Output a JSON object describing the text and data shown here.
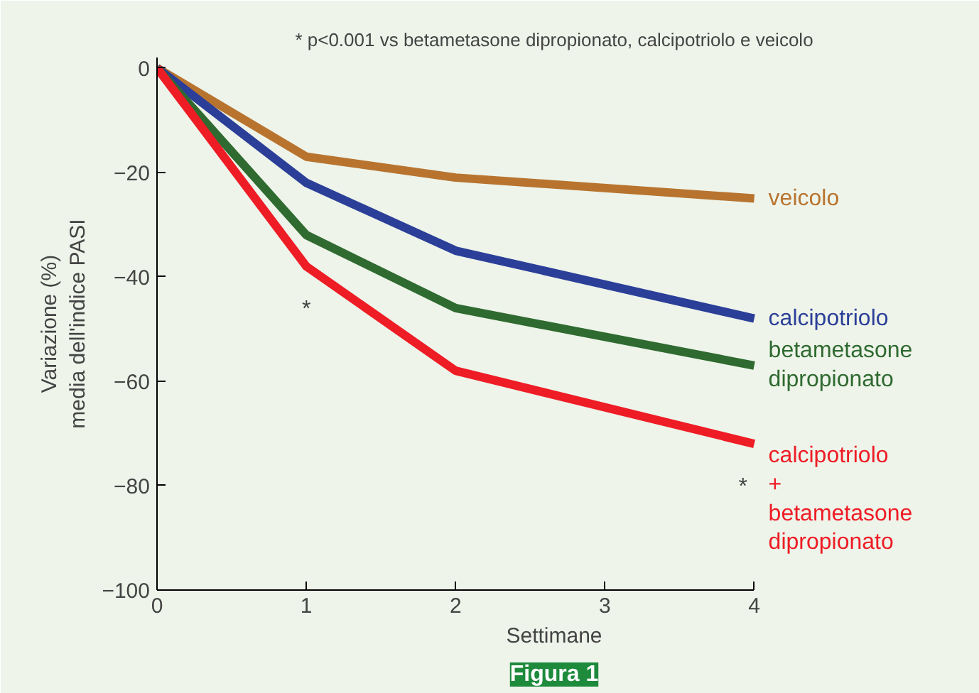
{
  "chart_data": {
    "type": "line",
    "title": "* p<0.001 vs betametasone dipropionato, calcipotriolo e veicolo",
    "xlabel": "Settimane",
    "ylabel": "Variazione (%)\nmedia dell'indice PASI",
    "x": [
      0,
      1,
      2,
      4
    ],
    "xlim": [
      0,
      4
    ],
    "xticks": [
      0,
      1,
      2,
      3,
      4
    ],
    "ylim": [
      -100,
      2
    ],
    "yticks": [
      0,
      -20,
      -40,
      -60,
      -80,
      -100
    ],
    "grid": false,
    "marker": "none",
    "line_style": "solid",
    "series": [
      {
        "name": "veicolo",
        "color": "#b8742f",
        "values": [
          0,
          -17,
          -21,
          -25
        ]
      },
      {
        "name": "calcipotriolo",
        "color": "#2b3f98",
        "values": [
          0,
          -22,
          -35,
          -48
        ]
      },
      {
        "name": "betametasone dipropionato",
        "color": "#2f6a30",
        "values": [
          0,
          -32,
          -46,
          -57
        ]
      },
      {
        "name": "calcipotriolo + betametasone dipropionato",
        "color": "#ee1c25",
        "values": [
          0,
          -38,
          -58,
          -72
        ]
      }
    ],
    "annotations": [
      "*",
      "*",
      "Figura 1"
    ]
  }
}
